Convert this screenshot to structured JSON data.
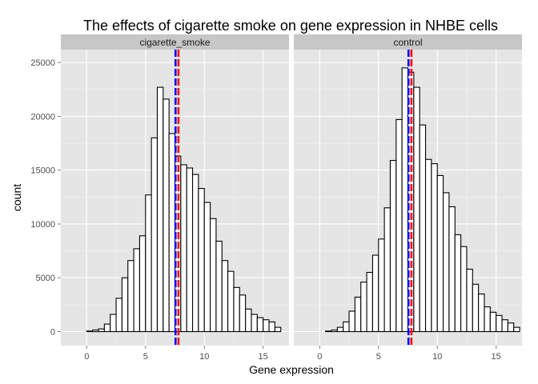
{
  "chart_data": {
    "type": "bar",
    "title": "The effects of cigarette smoke on gene expression in NHBE cells",
    "xlabel": "Gene expression",
    "ylabel": "count",
    "xlim": [
      -2.2,
      17.2
    ],
    "ylim": [
      -1300,
      26200
    ],
    "x_ticks": [
      0,
      5,
      10,
      15
    ],
    "x_tick_labels": [
      "0",
      "5",
      "10",
      "15"
    ],
    "y_ticks": [
      0,
      5000,
      10000,
      15000,
      20000,
      25000
    ],
    "y_tick_labels": [
      "0",
      "5000",
      "10000",
      "15000",
      "20000",
      "25000"
    ],
    "bin_start": -1.5,
    "bin_width": 0.5,
    "grid": true,
    "vline_colors": [
      "#0000ff",
      "#ff0000"
    ],
    "panels": [
      {
        "strip_label": "cigarette_smoke",
        "vlines": [
          7.55,
          7.8
        ],
        "counts": [
          0,
          0,
          0,
          50,
          150,
          250,
          700,
          1600,
          3100,
          5000,
          6600,
          7700,
          8900,
          12700,
          18000,
          22700,
          21600,
          18400,
          16300,
          15500,
          15200,
          14600,
          13300,
          12000,
          10500,
          8400,
          6600,
          5600,
          4100,
          3400,
          2100,
          1600,
          1300,
          1100,
          900,
          400,
          0
        ]
      },
      {
        "strip_label": "control",
        "vlines": [
          7.55,
          7.8
        ],
        "counts": [
          0,
          0,
          0,
          0,
          50,
          150,
          400,
          900,
          1900,
          3200,
          4600,
          5500,
          7100,
          8600,
          11500,
          15900,
          19700,
          24500,
          24100,
          22700,
          19200,
          16000,
          15600,
          14500,
          12900,
          11600,
          9000,
          7900,
          5800,
          4400,
          3500,
          2300,
          1800,
          1500,
          1100,
          800,
          400
        ]
      }
    ]
  }
}
